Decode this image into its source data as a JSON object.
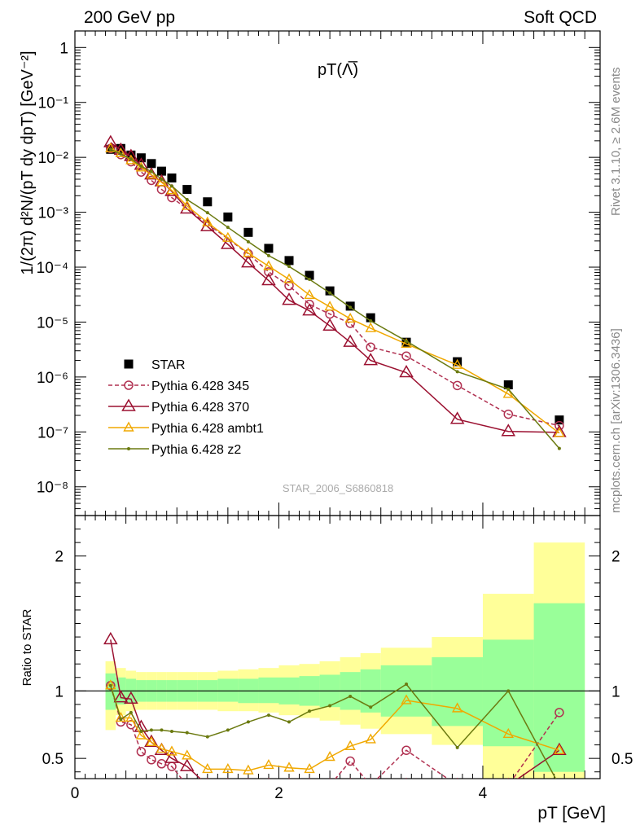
{
  "header": {
    "left": "200 GeV pp",
    "right": "Soft QCD"
  },
  "side_text": {
    "top": "Rivet 3.1.10, ≥ 2.6M events",
    "bottom": "mcplots.cern.ch [arXiv:1306.3436]"
  },
  "chart_data": [
    {
      "type": "scatter",
      "panel": "main",
      "title": "pT(Λ̅)",
      "ylabel": "1/(2π) d²N/(pT dy dpT) [GeV⁻²]",
      "yscale": "log",
      "xlim": [
        0,
        5.15
      ],
      "ylim": [
        3e-09,
        2
      ],
      "yticks": [
        {
          "v": 1,
          "label": "1"
        },
        {
          "v": 0.1,
          "label": "10⁻¹"
        },
        {
          "v": 0.01,
          "label": "10⁻²"
        },
        {
          "v": 0.001,
          "label": "10⁻³"
        },
        {
          "v": 0.0001,
          "label": "10⁻⁴"
        },
        {
          "v": 1e-05,
          "label": "10⁻⁵"
        },
        {
          "v": 1e-06,
          "label": "10⁻⁶"
        },
        {
          "v": 1e-07,
          "label": "10⁻⁷"
        },
        {
          "v": 1e-08,
          "label": "10⁻⁸"
        }
      ],
      "watermark": "STAR_2006_S6860818",
      "x": [
        0.35,
        0.45,
        0.55,
        0.65,
        0.75,
        0.85,
        0.95,
        1.1,
        1.3,
        1.5,
        1.7,
        1.9,
        2.1,
        2.3,
        2.5,
        2.7,
        2.9,
        3.25,
        3.75,
        4.25,
        4.75
      ],
      "series": [
        {
          "name": "STAR",
          "color": "#000000",
          "marker": "square",
          "values": [
            0.014,
            0.0145,
            0.011,
            0.0098,
            0.0077,
            0.0056,
            0.0042,
            0.0026,
            0.00155,
            0.00082,
            0.00043,
            0.00022,
            0.000132,
            7.1e-05,
            3.7e-05,
            1.95e-05,
            1.2e-05,
            4.3e-06,
            1.9e-06,
            7.2e-07,
            1.65e-07
          ]
        },
        {
          "name": "Pythia 6.428 345",
          "color": "#b03050",
          "marker": "circle",
          "dash": true,
          "values": [
            0.0145,
            0.0112,
            0.0083,
            0.0054,
            0.0038,
            0.0026,
            0.00185,
            null,
            null,
            null,
            0.000175,
            8.2e-05,
            4.6e-05,
            2.1e-05,
            1.4e-05,
            9.5e-06,
            3.5e-06,
            2.4e-06,
            7e-07,
            2.1e-07,
            1.3e-07
          ]
        },
        {
          "name": "Pythia 6.428 370",
          "color": "#9b1030",
          "marker": "triangle",
          "values": [
            0.0185,
            0.0135,
            0.0104,
            0.0072,
            0.0048,
            0.0036,
            0.0024,
            0.00115,
            0.00055,
            0.00026,
            0.00012,
            5.7e-05,
            2.5e-05,
            1.6e-05,
            8.5e-06,
            4.3e-06,
            2e-06,
            1.2e-06,
            1.7e-07,
            1.02e-07,
            9.8e-08
          ]
        },
        {
          "name": "Pythia 6.428 ambt1",
          "color": "#f0a800",
          "marker": "triangle-small",
          "values": [
            0.0145,
            0.0118,
            0.0088,
            0.0065,
            0.0048,
            0.0035,
            0.0025,
            0.0013,
            0.00065,
            0.00034,
            0.00018,
            0.000104,
            6e-05,
            3.1e-05,
            1.9e-05,
            1.15e-05,
            7.7e-06,
            4e-06,
            1.65e-06,
            4.9e-07,
            9.5e-08
          ]
        },
        {
          "name": "Pythia 6.428 z2",
          "color": "#6b7a10",
          "marker": "dot",
          "values": [
            0.014,
            0.0115,
            0.0093,
            0.0069,
            0.0055,
            0.004,
            0.003,
            0.0017,
            0.00098,
            0.00053,
            0.00029,
            0.000162,
            0.000103,
            6e-05,
            3.4e-05,
            1.85e-05,
            1.05e-05,
            4.5e-06,
            1.25e-06,
            6e-07,
            5e-08
          ]
        }
      ]
    },
    {
      "type": "line",
      "panel": "ratio",
      "ylabel": "Ratio to STAR",
      "xlabel": "pT [GeV]",
      "xlim": [
        0,
        5.15
      ],
      "ylim": [
        0.35,
        2.3
      ],
      "xticks": [
        0,
        2,
        4
      ],
      "yticks": [
        0.5,
        1,
        2
      ],
      "band_edges": [
        0.3,
        0.4,
        0.5,
        0.6,
        0.7,
        0.8,
        0.9,
        1.0,
        1.2,
        1.4,
        1.6,
        1.8,
        2.0,
        2.2,
        2.4,
        2.6,
        2.8,
        3.0,
        3.5,
        4.0,
        4.5,
        5.0
      ],
      "band_inner": [
        [
          0.86,
          1.13
        ],
        [
          0.9,
          1.1
        ],
        [
          0.91,
          1.09
        ],
        [
          0.92,
          1.08
        ],
        [
          0.92,
          1.08
        ],
        [
          0.92,
          1.08
        ],
        [
          0.92,
          1.08
        ],
        [
          0.92,
          1.08
        ],
        [
          0.92,
          1.08
        ],
        [
          0.92,
          1.09
        ],
        [
          0.91,
          1.09
        ],
        [
          0.91,
          1.1
        ],
        [
          0.9,
          1.1
        ],
        [
          0.89,
          1.11
        ],
        [
          0.88,
          1.12
        ],
        [
          0.86,
          1.14
        ],
        [
          0.84,
          1.16
        ],
        [
          0.81,
          1.19
        ],
        [
          0.74,
          1.25
        ],
        [
          0.59,
          1.38
        ],
        [
          0.4,
          1.65
        ]
      ],
      "band_outer": [
        [
          0.71,
          1.22
        ],
        [
          0.82,
          1.17
        ],
        [
          0.85,
          1.15
        ],
        [
          0.86,
          1.14
        ],
        [
          0.86,
          1.14
        ],
        [
          0.86,
          1.14
        ],
        [
          0.86,
          1.14
        ],
        [
          0.86,
          1.14
        ],
        [
          0.86,
          1.14
        ],
        [
          0.85,
          1.15
        ],
        [
          0.85,
          1.16
        ],
        [
          0.84,
          1.17
        ],
        [
          0.82,
          1.19
        ],
        [
          0.8,
          1.2
        ],
        [
          0.78,
          1.22
        ],
        [
          0.75,
          1.25
        ],
        [
          0.72,
          1.28
        ],
        [
          0.68,
          1.32
        ],
        [
          0.6,
          1.4
        ],
        [
          0.35,
          1.72
        ],
        [
          0.35,
          2.1
        ]
      ],
      "x": [
        0.35,
        0.45,
        0.55,
        0.65,
        0.75,
        0.85,
        0.95,
        1.1,
        1.3,
        1.5,
        1.7,
        1.9,
        2.1,
        2.3,
        2.5,
        2.7,
        2.9,
        3.25,
        3.75,
        4.25,
        4.75
      ],
      "series": [
        {
          "name": "Pythia 6.428 345",
          "color": "#b03050",
          "marker": "circle",
          "dash": true,
          "values": [
            1.04,
            0.77,
            0.75,
            0.55,
            0.49,
            0.46,
            0.44,
            0.3,
            0.3,
            0.3,
            0.3,
            0.3,
            0.3,
            0.3,
            0.3,
            0.48,
            0.3,
            0.56,
            0.3,
            0.3,
            0.84
          ]
        },
        {
          "name": "Pythia 6.428 370",
          "color": "#9b1030",
          "marker": "triangle",
          "values": [
            1.38,
            0.95,
            0.94,
            0.73,
            0.62,
            0.56,
            0.5,
            0.44,
            0.3,
            0.3,
            0.3,
            0.3,
            0.3,
            0.3,
            0.3,
            0.3,
            0.3,
            0.3,
            0.3,
            0.3,
            0.56
          ]
        },
        {
          "name": "Pythia 6.428 ambt1",
          "color": "#f0a800",
          "marker": "triangle-small",
          "values": [
            1.04,
            0.8,
            0.8,
            0.67,
            0.62,
            0.57,
            0.55,
            0.52,
            0.42,
            0.42,
            0.41,
            0.45,
            0.43,
            0.42,
            0.51,
            0.59,
            0.64,
            0.93,
            0.87,
            0.68,
            0.56
          ]
        },
        {
          "name": "Pythia 6.428 z2",
          "color": "#6b7a10",
          "marker": "dot",
          "values": [
            1.04,
            0.79,
            0.84,
            0.7,
            0.71,
            0.71,
            0.7,
            0.69,
            0.66,
            0.71,
            0.77,
            0.82,
            0.77,
            0.85,
            0.89,
            0.96,
            0.88,
            1.05,
            0.58,
            1.0,
            0.3
          ]
        }
      ]
    }
  ]
}
